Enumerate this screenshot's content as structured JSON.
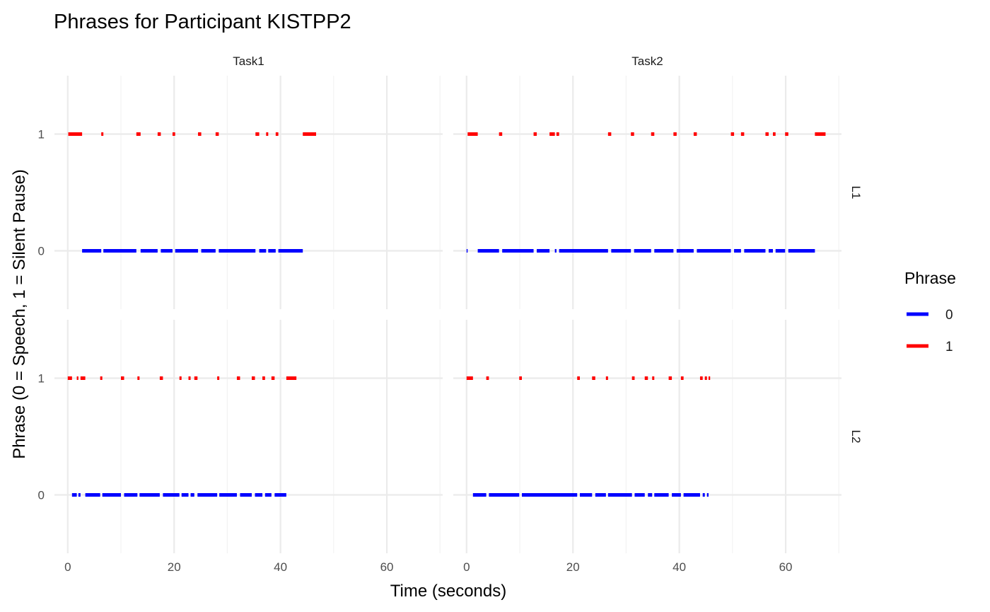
{
  "chart_data": {
    "type": "line",
    "title": "Phrases for Participant KISTPP2",
    "xlabel": "Time (seconds)",
    "ylabel": "Phrase (0 = Speech, 1 = Silent Pause)",
    "facet_columns": [
      "Task1",
      "Task2"
    ],
    "facet_rows": [
      "L1",
      "L2"
    ],
    "xlim": [
      -2.5,
      70.5
    ],
    "ylim": [
      -0.5,
      1.5
    ],
    "x_ticks": [
      0,
      20,
      40,
      60
    ],
    "y_ticks": [
      0,
      1
    ],
    "grid": true,
    "legend": {
      "title": "Phrase",
      "placement": "right",
      "entries": [
        {
          "label": "0",
          "color": "#0000FF"
        },
        {
          "label": "1",
          "color": "#FF0000"
        }
      ]
    },
    "panels": [
      {
        "column": "Task1",
        "row": "L1",
        "series": [
          {
            "phrase": "0",
            "color": "#0000FF",
            "y": 0,
            "segments": [
              [
                2.7,
                6.3
              ],
              [
                6.7,
                12.9
              ],
              [
                13.7,
                16.9
              ],
              [
                17.5,
                19.7
              ],
              [
                20.2,
                24.5
              ],
              [
                25.1,
                27.8
              ],
              [
                28.4,
                35.3
              ],
              [
                36.0,
                37.3
              ],
              [
                37.7,
                39.1
              ],
              [
                39.6,
                44.2
              ]
            ]
          },
          {
            "phrase": "1",
            "color": "#FF0000",
            "y": 1,
            "segments": [
              [
                0.1,
                2.7
              ],
              [
                6.3,
                6.7
              ],
              [
                12.9,
                13.7
              ],
              [
                16.9,
                17.5
              ],
              [
                19.7,
                20.2
              ],
              [
                24.5,
                25.1
              ],
              [
                27.8,
                28.4
              ],
              [
                35.3,
                36.0
              ],
              [
                37.3,
                37.7
              ],
              [
                39.1,
                39.6
              ],
              [
                44.2,
                46.7
              ]
            ]
          }
        ]
      },
      {
        "column": "Task2",
        "row": "L1",
        "series": [
          {
            "phrase": "0",
            "color": "#0000FF",
            "y": 0,
            "segments": [
              [
                0.0,
                0.2
              ],
              [
                2.1,
                6.1
              ],
              [
                6.7,
                12.6
              ],
              [
                13.2,
                15.6
              ],
              [
                16.6,
                16.9
              ],
              [
                17.4,
                26.6
              ],
              [
                27.2,
                30.9
              ],
              [
                31.5,
                34.7
              ],
              [
                35.3,
                38.9
              ],
              [
                39.5,
                42.7
              ],
              [
                43.3,
                49.7
              ],
              [
                50.3,
                51.6
              ],
              [
                52.2,
                56.2
              ],
              [
                56.8,
                57.6
              ],
              [
                58.1,
                59.9
              ],
              [
                60.5,
                65.5
              ]
            ]
          },
          {
            "phrase": "1",
            "color": "#FF0000",
            "y": 1,
            "segments": [
              [
                0.2,
                2.1
              ],
              [
                6.1,
                6.7
              ],
              [
                12.6,
                13.2
              ],
              [
                15.6,
                16.6
              ],
              [
                16.9,
                17.4
              ],
              [
                26.6,
                27.2
              ],
              [
                30.9,
                31.5
              ],
              [
                34.7,
                35.3
              ],
              [
                38.9,
                39.5
              ],
              [
                42.7,
                43.3
              ],
              [
                49.7,
                50.3
              ],
              [
                51.6,
                52.2
              ],
              [
                56.2,
                56.8
              ],
              [
                57.6,
                58.1
              ],
              [
                59.9,
                60.5
              ],
              [
                65.5,
                67.5
              ]
            ]
          }
        ]
      },
      {
        "column": "Task1",
        "row": "L2",
        "series": [
          {
            "phrase": "0",
            "color": "#0000FF",
            "y": 0,
            "segments": [
              [
                0.8,
                1.7
              ],
              [
                2.0,
                2.4
              ],
              [
                3.3,
                6.1
              ],
              [
                6.5,
                10.0
              ],
              [
                10.6,
                13.1
              ],
              [
                13.5,
                17.3
              ],
              [
                17.9,
                21.0
              ],
              [
                21.4,
                22.7
              ],
              [
                23.1,
                23.8
              ],
              [
                24.4,
                28.1
              ],
              [
                28.5,
                31.8
              ],
              [
                32.4,
                34.6
              ],
              [
                35.2,
                36.6
              ],
              [
                37.1,
                38.3
              ],
              [
                38.9,
                41.1
              ]
            ]
          },
          {
            "phrase": "1",
            "color": "#FF0000",
            "y": 1,
            "segments": [
              [
                0.0,
                0.8
              ],
              [
                1.7,
                2.0
              ],
              [
                2.4,
                3.3
              ],
              [
                6.1,
                6.5
              ],
              [
                10.0,
                10.6
              ],
              [
                13.1,
                13.5
              ],
              [
                17.3,
                17.9
              ],
              [
                21.0,
                21.4
              ],
              [
                22.7,
                23.1
              ],
              [
                23.8,
                24.4
              ],
              [
                28.1,
                28.5
              ],
              [
                31.8,
                32.4
              ],
              [
                34.6,
                35.2
              ],
              [
                36.6,
                37.1
              ],
              [
                38.3,
                38.9
              ],
              [
                41.1,
                43.0
              ]
            ]
          }
        ]
      },
      {
        "column": "Task2",
        "row": "L2",
        "series": [
          {
            "phrase": "0",
            "color": "#0000FF",
            "y": 0,
            "segments": [
              [
                1.2,
                3.7
              ],
              [
                4.2,
                9.9
              ],
              [
                10.4,
                20.8
              ],
              [
                21.3,
                23.6
              ],
              [
                24.2,
                26.2
              ],
              [
                26.6,
                31.1
              ],
              [
                31.6,
                33.5
              ],
              [
                34.1,
                34.9
              ],
              [
                35.3,
                38.0
              ],
              [
                38.6,
                40.3
              ],
              [
                40.8,
                43.9
              ],
              [
                44.4,
                44.8
              ],
              [
                45.2,
                45.5
              ]
            ]
          },
          {
            "phrase": "1",
            "color": "#FF0000",
            "y": 1,
            "segments": [
              [
                0.0,
                1.2
              ],
              [
                3.7,
                4.2
              ],
              [
                9.9,
                10.4
              ],
              [
                20.8,
                21.3
              ],
              [
                23.6,
                24.2
              ],
              [
                26.2,
                26.6
              ],
              [
                31.1,
                31.6
              ],
              [
                33.5,
                34.1
              ],
              [
                34.9,
                35.3
              ],
              [
                38.0,
                38.6
              ],
              [
                40.3,
                40.8
              ],
              [
                43.9,
                44.4
              ],
              [
                44.8,
                45.2
              ],
              [
                45.5,
                45.8
              ]
            ]
          }
        ]
      }
    ]
  }
}
